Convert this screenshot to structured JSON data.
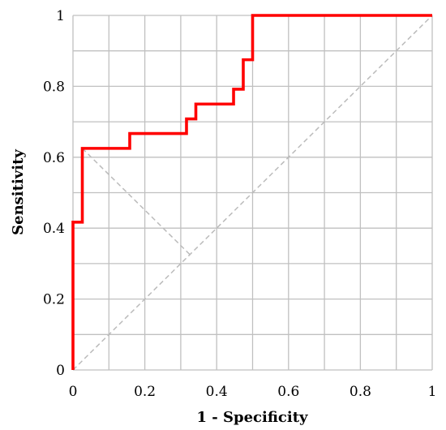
{
  "chart_data": {
    "type": "line",
    "title": "",
    "xlabel": "1 - Specificity",
    "ylabel": "Sensitivity",
    "xlim": [
      0,
      1
    ],
    "ylim": [
      0,
      1
    ],
    "x_ticks": [
      "0",
      "0.2",
      "0.4",
      "0.6",
      "0.8",
      "1"
    ],
    "y_ticks": [
      "0",
      "0.2",
      "0.4",
      "0.6",
      "0.8",
      "1"
    ],
    "grid": true,
    "grid_step": 0.1,
    "series": [
      {
        "style": "solid",
        "color": "#ff0000",
        "points": [
          [
            0,
            0
          ],
          [
            0,
            0.417
          ],
          [
            0.026,
            0.417
          ],
          [
            0.026,
            0.625
          ],
          [
            0.158,
            0.625
          ],
          [
            0.158,
            0.667
          ],
          [
            0.316,
            0.667
          ],
          [
            0.316,
            0.708
          ],
          [
            0.342,
            0.708
          ],
          [
            0.342,
            0.75
          ],
          [
            0.447,
            0.75
          ],
          [
            0.447,
            0.792
          ],
          [
            0.474,
            0.792
          ],
          [
            0.474,
            0.875
          ],
          [
            0.5,
            0.875
          ],
          [
            0.5,
            1.0
          ],
          [
            1.0,
            1.0
          ]
        ]
      },
      {
        "style": "dashed",
        "color": "#bbbbbb",
        "points": [
          [
            0,
            0
          ],
          [
            1,
            1
          ]
        ]
      },
      {
        "style": "dashed",
        "color": "#bbbbbb",
        "points": [
          [
            0.026,
            0.625
          ],
          [
            0.3255,
            0.3255
          ]
        ]
      }
    ]
  }
}
